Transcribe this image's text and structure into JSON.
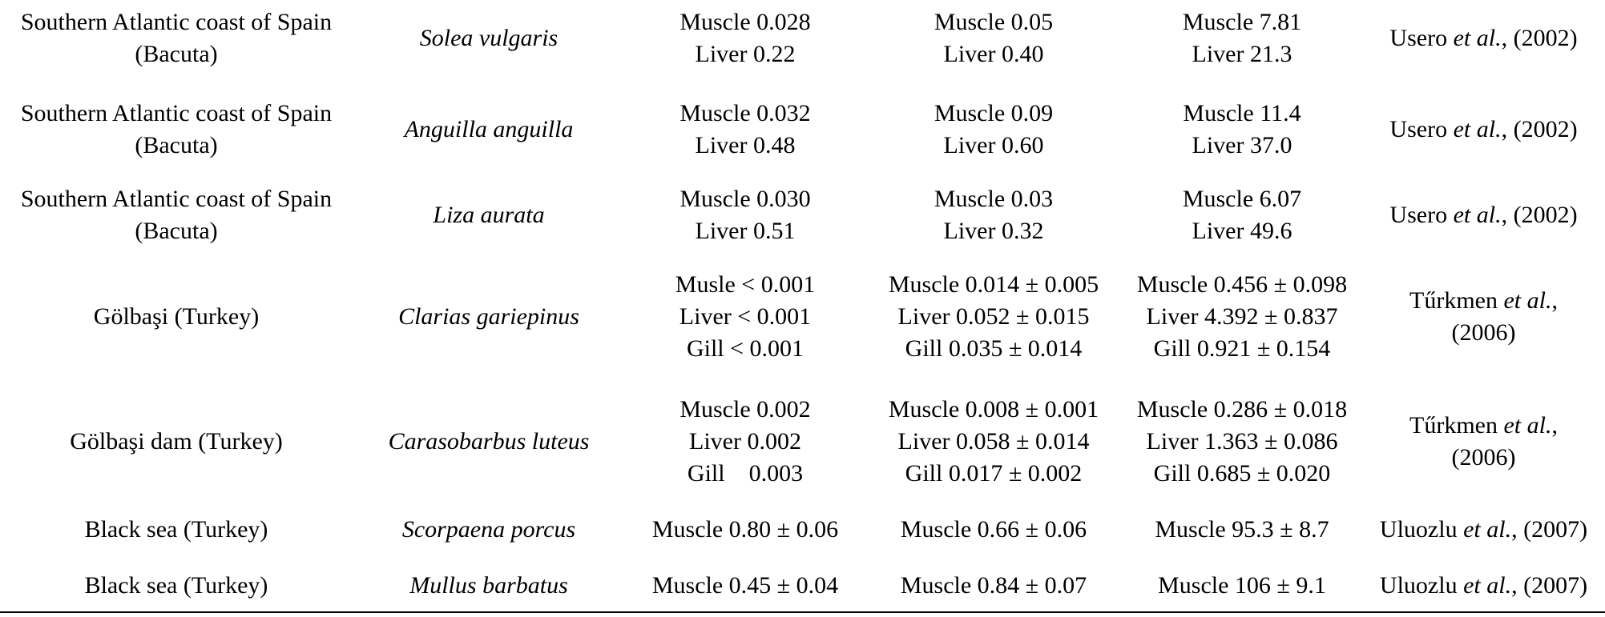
{
  "rows": [
    {
      "location": [
        "Southern Atlantic coast of Spain",
        "(Bacuta)"
      ],
      "species": "Solea vulgaris",
      "v1": [
        "Muscle 0.028",
        "Liver 0.22"
      ],
      "v2": [
        "Muscle 0.05",
        "Liver 0.40"
      ],
      "v3": [
        "Muscle 7.81",
        "Liver 21.3"
      ],
      "ref": {
        "author": "Usero",
        "etal": "et al.",
        "year": ", (2002)"
      }
    },
    {
      "location": [
        "Southern Atlantic coast of Spain",
        "(Bacuta)"
      ],
      "species": "Anguilla anguilla",
      "v1": [
        "Muscle 0.032",
        "Liver 0.48"
      ],
      "v2": [
        "Muscle 0.09",
        "Liver 0.60"
      ],
      "v3": [
        "Muscle 11.4",
        "Liver 37.0"
      ],
      "ref": {
        "author": "Usero",
        "etal": "et al.",
        "year": ", (2002)"
      }
    },
    {
      "location": [
        "Southern Atlantic coast of Spain",
        "(Bacuta)"
      ],
      "species": "Liza aurata",
      "v1": [
        "Muscle 0.030",
        "Liver 0.51"
      ],
      "v2": [
        "Muscle 0.03",
        "Liver 0.32"
      ],
      "v3": [
        "Muscle 6.07",
        "Liver 49.6"
      ],
      "ref": {
        "author": "Usero",
        "etal": "et al.",
        "year": ", (2002)"
      }
    },
    {
      "location": [
        "Gölbaşi (Turkey)"
      ],
      "species": "Clarias gariepinus",
      "v1": [
        "Musle < 0.001",
        "Liver < 0.001",
        "Gill < 0.001"
      ],
      "v2": [
        "Muscle 0.014 ± 0.005",
        "Liver 0.052 ± 0.015",
        "Gill 0.035 ± 0.014"
      ],
      "v3": [
        "Muscle 0.456 ± 0.098",
        "Liver 4.392 ± 0.837",
        "Gill 0.921 ± 0.154"
      ],
      "ref": {
        "author": "Tűrkmen",
        "etal": "et al.",
        "year": ",",
        "year2": "(2006)"
      }
    },
    {
      "location": [
        "Gölbaşi dam (Turkey)"
      ],
      "species": "Carasobarbus luteus",
      "v1": [
        "Muscle 0.002",
        "Liver 0.002",
        "Gill    0.003"
      ],
      "v2": [
        "Muscle 0.008 ± 0.001",
        "Liver 0.058 ± 0.014",
        "Gill 0.017 ± 0.002"
      ],
      "v3": [
        "Muscle 0.286 ± 0.018",
        "Liver 1.363 ± 0.086",
        "Gill 0.685 ± 0.020"
      ],
      "ref": {
        "author": "Tűrkmen",
        "etal": "et al.",
        "year": ",",
        "year2": "(2006)"
      }
    },
    {
      "location": [
        "Black sea (Turkey)"
      ],
      "species": "Scorpaena porcus",
      "v1": [
        "Muscle 0.80 ± 0.06"
      ],
      "v2": [
        "Muscle 0.66 ± 0.06"
      ],
      "v3": [
        "Muscle 95.3 ± 8.7"
      ],
      "ref": {
        "author": "Uluozlu",
        "etal": "et al.",
        "year": ", (2007)"
      }
    },
    {
      "location": [
        "Black sea (Turkey)"
      ],
      "species": "Mullus barbatus",
      "v1": [
        "Muscle 0.45 ± 0.04"
      ],
      "v2": [
        "Muscle 0.84 ± 0.07"
      ],
      "v3": [
        "Muscle 106 ± 9.1"
      ],
      "ref": {
        "author": "Uluozlu",
        "etal": "et al.",
        "year": ", (2007)"
      }
    }
  ]
}
